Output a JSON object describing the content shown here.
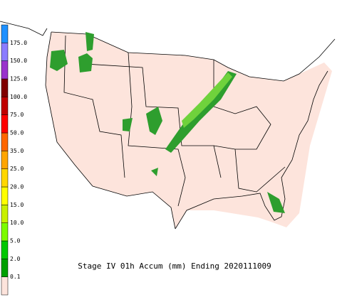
{
  "title": "Stage IV 01h Accum (mm) Ending 2020111009",
  "legend": {
    "levels": [
      {
        "label": "0.1",
        "color": "#00a000"
      },
      {
        "label": "2.0",
        "color": "#00c800"
      },
      {
        "label": "5.0",
        "color": "#7cfc00"
      },
      {
        "label": "10.0",
        "color": "#c8f000"
      },
      {
        "label": "15.0",
        "color": "#ffff00"
      },
      {
        "label": "20.0",
        "color": "#ffd700"
      },
      {
        "label": "25.0",
        "color": "#ffa500"
      },
      {
        "label": "35.0",
        "color": "#ff6600"
      },
      {
        "label": "50.0",
        "color": "#ff0000"
      },
      {
        "label": "75.0",
        "color": "#c00000"
      },
      {
        "label": "100.0",
        "color": "#800000"
      },
      {
        "label": "125.0",
        "color": "#9932cc"
      },
      {
        "label": "150.0",
        "color": "#8a7cff"
      },
      {
        "label": "175.0",
        "color": "#1e90ff"
      }
    ],
    "base_color": "#fde4dc"
  }
}
